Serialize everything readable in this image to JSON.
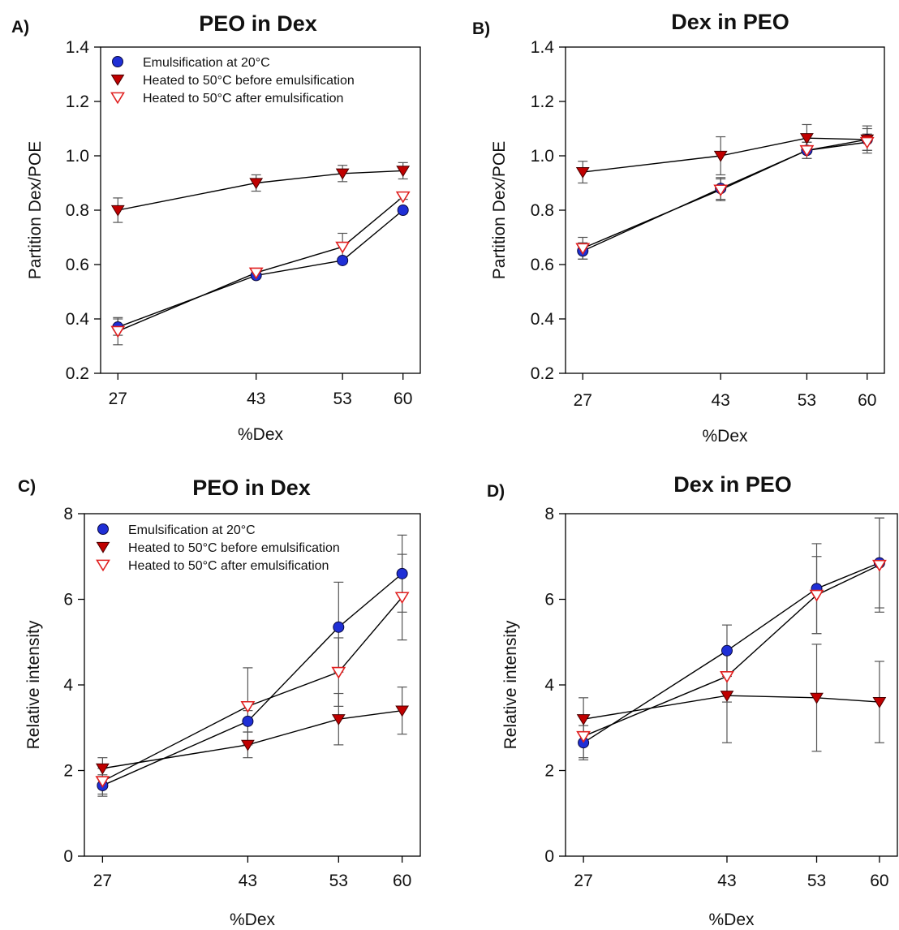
{
  "figure": {
    "colors": {
      "blue": "#1f2fd6",
      "red_dark": "#c00000",
      "red_open": "#e02020",
      "line": "#000000",
      "error": "#555555"
    }
  },
  "chart_data": [
    {
      "panel": "A)",
      "type": "line",
      "title": "PEO in Dex",
      "xlabel": "%Dex",
      "ylabel": "Partition Dex/POE",
      "x": [
        27,
        43,
        53,
        60
      ],
      "xlim": [
        25,
        62
      ],
      "ylim": [
        0.2,
        1.4
      ],
      "yticks": [
        0.2,
        0.4,
        0.6,
        0.8,
        1.0,
        1.2,
        1.4
      ],
      "ytick_labels": [
        "0.2",
        "0.4",
        "0.6",
        "0.8",
        "1.0",
        "1.2",
        "1.4"
      ],
      "grid": false,
      "legend": "top-left",
      "series": [
        {
          "name": "Emulsification at 20°C",
          "marker": "circle",
          "values": [
            0.37,
            0.56,
            0.615,
            0.8
          ],
          "errors": [
            0.03,
            0.01,
            0.01,
            0.01
          ]
        },
        {
          "name": "Heated to 50°C before emulsification",
          "marker": "triangle-down-filled",
          "values": [
            0.8,
            0.9,
            0.935,
            0.945
          ],
          "errors": [
            0.045,
            0.03,
            0.03,
            0.03
          ]
        },
        {
          "name": "Heated to 50°C after emulsification",
          "marker": "triangle-down-open",
          "values": [
            0.355,
            0.57,
            0.665,
            0.85
          ],
          "errors": [
            0.05,
            0.01,
            0.05,
            0.01
          ]
        }
      ]
    },
    {
      "panel": "B)",
      "type": "line",
      "title": "Dex in PEO",
      "xlabel": "%Dex",
      "ylabel": "Partition Dex/POE",
      "x": [
        27,
        43,
        53,
        60
      ],
      "xlim": [
        25,
        62
      ],
      "ylim": [
        0.2,
        1.4
      ],
      "yticks": [
        0.2,
        0.4,
        0.6,
        0.8,
        1.0,
        1.2,
        1.4
      ],
      "ytick_labels": [
        "0.2",
        "0.4",
        "0.6",
        "0.8",
        "1.0",
        "1.2",
        "1.4"
      ],
      "grid": false,
      "legend": "none",
      "series": [
        {
          "name": "Emulsification at 20°C",
          "marker": "circle",
          "values": [
            0.65,
            0.88,
            1.02,
            1.06
          ],
          "errors": [
            0.03,
            0.04,
            0.03,
            0.05
          ]
        },
        {
          "name": "Heated to 50°C before emulsification",
          "marker": "triangle-down-filled",
          "values": [
            0.94,
            1.0,
            1.065,
            1.06
          ],
          "errors": [
            0.04,
            0.07,
            0.05,
            0.04
          ]
        },
        {
          "name": "Heated to 50°C after emulsification",
          "marker": "triangle-down-open",
          "values": [
            0.66,
            0.875,
            1.02,
            1.05
          ],
          "errors": [
            0.04,
            0.04,
            0.03,
            0.03
          ]
        }
      ]
    },
    {
      "panel": "C)",
      "type": "line",
      "title": "PEO in Dex",
      "xlabel": "%Dex",
      "ylabel": "Relative intensity",
      "x": [
        27,
        43,
        53,
        60
      ],
      "xlim": [
        25,
        62
      ],
      "ylim": [
        0,
        8
      ],
      "yticks": [
        0,
        2,
        4,
        6,
        8
      ],
      "ytick_labels": [
        "0",
        "2",
        "4",
        "6",
        "8"
      ],
      "grid": false,
      "legend": "top-left",
      "series": [
        {
          "name": "Emulsification at 20°C",
          "marker": "circle",
          "values": [
            1.65,
            3.15,
            5.35,
            6.6
          ],
          "errors": [
            0.25,
            0.25,
            1.05,
            0.9
          ]
        },
        {
          "name": "Heated to 50°C before emulsification",
          "marker": "triangle-down-filled",
          "values": [
            2.05,
            2.6,
            3.2,
            3.4
          ],
          "errors": [
            0.25,
            0.3,
            0.6,
            0.55
          ]
        },
        {
          "name": "Heated to 50°C after emulsification",
          "marker": "triangle-down-open",
          "values": [
            1.75,
            3.5,
            4.3,
            6.05
          ],
          "errors": [
            0.3,
            0.9,
            0.8,
            1.0
          ]
        }
      ]
    },
    {
      "panel": "D)",
      "type": "line",
      "title": "Dex in PEO",
      "xlabel": "%Dex",
      "ylabel": "Relative intensity",
      "x": [
        27,
        43,
        53,
        60
      ],
      "xlim": [
        25,
        62
      ],
      "ylim": [
        0,
        8
      ],
      "yticks": [
        0,
        2,
        4,
        6,
        8
      ],
      "ytick_labels": [
        "0",
        "2",
        "4",
        "6",
        "8"
      ],
      "grid": false,
      "legend": "none",
      "series": [
        {
          "name": "Emulsification at 20°C",
          "marker": "circle",
          "values": [
            2.65,
            4.8,
            6.25,
            6.85
          ],
          "errors": [
            0.4,
            0.6,
            1.05,
            1.05
          ]
        },
        {
          "name": "Heated to 50°C before emulsification",
          "marker": "triangle-down-filled",
          "values": [
            3.2,
            3.75,
            3.7,
            3.6
          ],
          "errors": [
            0.5,
            1.1,
            1.25,
            0.95
          ]
        },
        {
          "name": "Heated to 50°C after emulsification",
          "marker": "triangle-down-open",
          "values": [
            2.8,
            4.2,
            6.1,
            6.8
          ],
          "errors": [
            0.5,
            0.6,
            0.9,
            1.1
          ]
        }
      ]
    }
  ]
}
